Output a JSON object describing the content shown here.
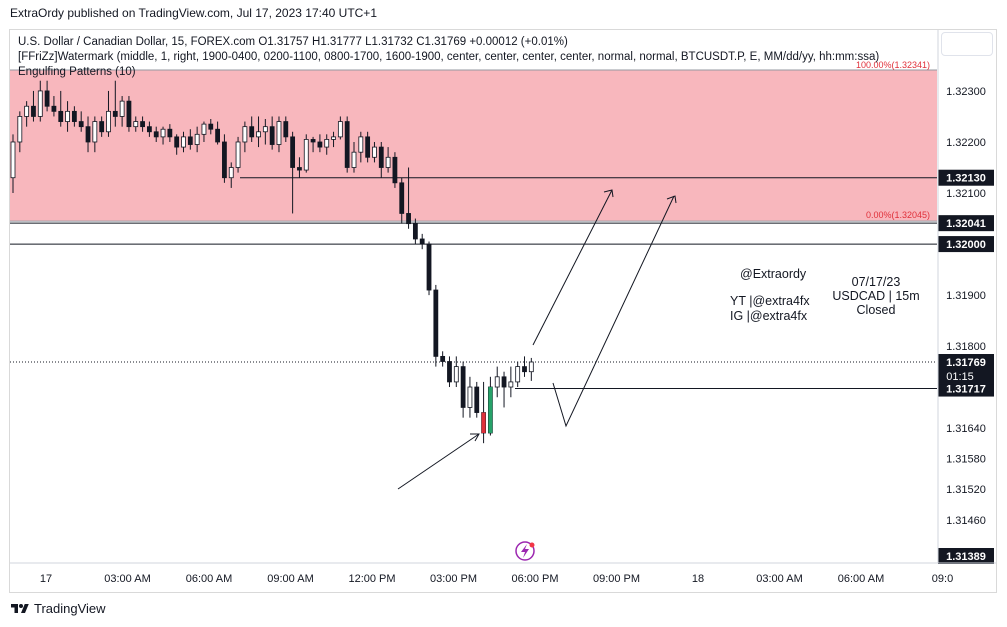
{
  "header": {
    "published": "ExtraOrdy published on TradingView.com, Jul 17, 2023 17:40 UTC+1"
  },
  "legend": {
    "symbol_line": "U.S. Dollar / Canadian Dollar, 15, FOREX.com  O1.31757  H1.31777  L1.31732  C1.31769  +0.00012 (+0.01%)",
    "indicator_line": "[FFriZz]Watermark (middle, 1, right, 1900-0400, 0200-1100, 0800-1700, 1600-1900, center, center, center, center, normal, normal, BTCUSDT.P, E, MM/dd/yy, hh:mm:ssa)",
    "pattern_line": "Engulfing Patterns (10)"
  },
  "footer": {
    "brand": "TradingView"
  },
  "colors": {
    "zone_fill": "#f8b7bd",
    "up_candle": "#26a269",
    "down_candle": "#131722",
    "zone_top_label": "#e0303a",
    "price_label_bg": "#131722",
    "price_label_text": "#ffffff"
  },
  "annotations": {
    "handle": "@Extraordy",
    "yt": "YT  |@extra4fx",
    "ig": "IG  |@extra4fx",
    "date": "07/17/23",
    "pair": "USDCAD  |  15m",
    "status": "Closed"
  },
  "chart_data": {
    "type": "candlestick",
    "symbol": "USDCAD",
    "interval": "15",
    "ylim": [
      1.31389,
      1.32341
    ],
    "y_ticks": [
      "1.32300",
      "1.32200",
      "1.32100",
      "1.31900",
      "1.31800",
      "1.31640",
      "1.31580",
      "1.31520",
      "1.31460"
    ],
    "x_ticks": [
      "17",
      "03:00 AM",
      "06:00 AM",
      "09:00 AM",
      "12:00 PM",
      "03:00 PM",
      "06:00 PM",
      "09:00 PM",
      "18",
      "03:00 AM",
      "06:00 AM",
      "09:0"
    ],
    "zone": {
      "top": 1.32341,
      "bottom": 1.32045,
      "top_label": "100.00%(1.32341)",
      "bottom_label": "0.00%(1.32045)"
    },
    "levels": [
      {
        "price": 1.3213,
        "label": "1.32130"
      },
      {
        "price": 1.32041,
        "label": "1.32041"
      },
      {
        "price": 1.32,
        "label": "1.32000"
      },
      {
        "price": 1.31717,
        "label": "1.31717"
      }
    ],
    "current_price": {
      "price": 1.31769,
      "label": "1.31769",
      "countdown": "01:15"
    },
    "bottom_label": {
      "price": 1.31389,
      "label": "1.31389"
    },
    "candles": [
      {
        "o": 1.3213,
        "h": 1.32215,
        "l": 1.321,
        "c": 1.322
      },
      {
        "o": 1.322,
        "h": 1.3226,
        "l": 1.3218,
        "c": 1.3225
      },
      {
        "o": 1.3225,
        "h": 1.3228,
        "l": 1.3223,
        "c": 1.3227
      },
      {
        "o": 1.3227,
        "h": 1.323,
        "l": 1.3224,
        "c": 1.3225
      },
      {
        "o": 1.3225,
        "h": 1.3232,
        "l": 1.3224,
        "c": 1.323
      },
      {
        "o": 1.323,
        "h": 1.3232,
        "l": 1.3226,
        "c": 1.3227
      },
      {
        "o": 1.3227,
        "h": 1.3229,
        "l": 1.3225,
        "c": 1.3226
      },
      {
        "o": 1.3226,
        "h": 1.323,
        "l": 1.3223,
        "c": 1.3224
      },
      {
        "o": 1.3224,
        "h": 1.3228,
        "l": 1.3222,
        "c": 1.3226
      },
      {
        "o": 1.3226,
        "h": 1.3227,
        "l": 1.3223,
        "c": 1.3224
      },
      {
        "o": 1.3224,
        "h": 1.3226,
        "l": 1.3222,
        "c": 1.3223
      },
      {
        "o": 1.3223,
        "h": 1.3225,
        "l": 1.3218,
        "c": 1.322
      },
      {
        "o": 1.322,
        "h": 1.3225,
        "l": 1.3218,
        "c": 1.3224
      },
      {
        "o": 1.3224,
        "h": 1.3225,
        "l": 1.3221,
        "c": 1.3222
      },
      {
        "o": 1.3222,
        "h": 1.323,
        "l": 1.3221,
        "c": 1.3226
      },
      {
        "o": 1.3226,
        "h": 1.3232,
        "l": 1.3223,
        "c": 1.3225
      },
      {
        "o": 1.3225,
        "h": 1.3229,
        "l": 1.3223,
        "c": 1.3228
      },
      {
        "o": 1.3228,
        "h": 1.3229,
        "l": 1.3222,
        "c": 1.3223
      },
      {
        "o": 1.3223,
        "h": 1.3225,
        "l": 1.3222,
        "c": 1.3224
      },
      {
        "o": 1.3224,
        "h": 1.3225,
        "l": 1.3222,
        "c": 1.3223
      },
      {
        "o": 1.3223,
        "h": 1.3224,
        "l": 1.3221,
        "c": 1.3222
      },
      {
        "o": 1.3222,
        "h": 1.3223,
        "l": 1.322,
        "c": 1.3221
      },
      {
        "o": 1.3221,
        "h": 1.3223,
        "l": 1.32195,
        "c": 1.32225
      },
      {
        "o": 1.32225,
        "h": 1.32235,
        "l": 1.322,
        "c": 1.3221
      },
      {
        "o": 1.3221,
        "h": 1.32215,
        "l": 1.32175,
        "c": 1.3219
      },
      {
        "o": 1.3219,
        "h": 1.3222,
        "l": 1.3218,
        "c": 1.3221
      },
      {
        "o": 1.3221,
        "h": 1.32225,
        "l": 1.32185,
        "c": 1.32195
      },
      {
        "o": 1.32195,
        "h": 1.3223,
        "l": 1.3218,
        "c": 1.32215
      },
      {
        "o": 1.32215,
        "h": 1.3224,
        "l": 1.322,
        "c": 1.32235
      },
      {
        "o": 1.32235,
        "h": 1.32245,
        "l": 1.32215,
        "c": 1.32225
      },
      {
        "o": 1.32225,
        "h": 1.3224,
        "l": 1.32195,
        "c": 1.322
      },
      {
        "o": 1.322,
        "h": 1.32215,
        "l": 1.3212,
        "c": 1.3213
      },
      {
        "o": 1.3213,
        "h": 1.3216,
        "l": 1.3211,
        "c": 1.3215
      },
      {
        "o": 1.3215,
        "h": 1.3221,
        "l": 1.3214,
        "c": 1.322
      },
      {
        "o": 1.322,
        "h": 1.3224,
        "l": 1.3218,
        "c": 1.3223
      },
      {
        "o": 1.3223,
        "h": 1.3225,
        "l": 1.322,
        "c": 1.3221
      },
      {
        "o": 1.3221,
        "h": 1.3225,
        "l": 1.3219,
        "c": 1.3222
      },
      {
        "o": 1.3222,
        "h": 1.32245,
        "l": 1.32195,
        "c": 1.3223
      },
      {
        "o": 1.3223,
        "h": 1.3225,
        "l": 1.32185,
        "c": 1.32195
      },
      {
        "o": 1.32195,
        "h": 1.3225,
        "l": 1.3218,
        "c": 1.3224
      },
      {
        "o": 1.3224,
        "h": 1.3225,
        "l": 1.322,
        "c": 1.3221
      },
      {
        "o": 1.3221,
        "h": 1.3222,
        "l": 1.3206,
        "c": 1.3215
      },
      {
        "o": 1.3215,
        "h": 1.3217,
        "l": 1.3213,
        "c": 1.32145
      },
      {
        "o": 1.32145,
        "h": 1.32215,
        "l": 1.3214,
        "c": 1.32205
      },
      {
        "o": 1.32205,
        "h": 1.3221,
        "l": 1.3218,
        "c": 1.322
      },
      {
        "o": 1.322,
        "h": 1.32215,
        "l": 1.3218,
        "c": 1.3219
      },
      {
        "o": 1.3219,
        "h": 1.32215,
        "l": 1.32175,
        "c": 1.32205
      },
      {
        "o": 1.32205,
        "h": 1.3222,
        "l": 1.3219,
        "c": 1.3221
      },
      {
        "o": 1.3221,
        "h": 1.3225,
        "l": 1.32205,
        "c": 1.3224
      },
      {
        "o": 1.3224,
        "h": 1.3225,
        "l": 1.3214,
        "c": 1.3215
      },
      {
        "o": 1.3215,
        "h": 1.322,
        "l": 1.3214,
        "c": 1.3218
      },
      {
        "o": 1.3218,
        "h": 1.3222,
        "l": 1.3216,
        "c": 1.3221
      },
      {
        "o": 1.3221,
        "h": 1.3222,
        "l": 1.3216,
        "c": 1.3217
      },
      {
        "o": 1.3217,
        "h": 1.322,
        "l": 1.3216,
        "c": 1.3219
      },
      {
        "o": 1.3219,
        "h": 1.322,
        "l": 1.3213,
        "c": 1.3215
      },
      {
        "o": 1.3215,
        "h": 1.3219,
        "l": 1.3214,
        "c": 1.3217
      },
      {
        "o": 1.3217,
        "h": 1.3218,
        "l": 1.3211,
        "c": 1.3212
      },
      {
        "o": 1.3212,
        "h": 1.3213,
        "l": 1.3204,
        "c": 1.3206
      },
      {
        "o": 1.3206,
        "h": 1.3215,
        "l": 1.3203,
        "c": 1.3204
      },
      {
        "o": 1.3204,
        "h": 1.3205,
        "l": 1.32,
        "c": 1.3201
      },
      {
        "o": 1.3201,
        "h": 1.3202,
        "l": 1.3199,
        "c": 1.32
      },
      {
        "o": 1.32,
        "h": 1.32005,
        "l": 1.319,
        "c": 1.3191
      },
      {
        "o": 1.3191,
        "h": 1.3192,
        "l": 1.3176,
        "c": 1.3178
      },
      {
        "o": 1.3178,
        "h": 1.3179,
        "l": 1.3176,
        "c": 1.3177
      },
      {
        "o": 1.3177,
        "h": 1.3178,
        "l": 1.3172,
        "c": 1.3173
      },
      {
        "o": 1.3173,
        "h": 1.3178,
        "l": 1.3172,
        "c": 1.3176
      },
      {
        "o": 1.3176,
        "h": 1.3177,
        "l": 1.3166,
        "c": 1.3168
      },
      {
        "o": 1.3168,
        "h": 1.3174,
        "l": 1.3166,
        "c": 1.3172
      },
      {
        "o": 1.3172,
        "h": 1.3173,
        "l": 1.3166,
        "c": 1.3167
      },
      {
        "o": 1.3167,
        "h": 1.3173,
        "l": 1.3161,
        "c": 1.3163
      },
      {
        "o": 1.3163,
        "h": 1.3174,
        "l": 1.31625,
        "c": 1.3172
      },
      {
        "o": 1.3172,
        "h": 1.3176,
        "l": 1.317,
        "c": 1.3174
      },
      {
        "o": 1.3174,
        "h": 1.3175,
        "l": 1.3168,
        "c": 1.3172
      },
      {
        "o": 1.3172,
        "h": 1.3176,
        "l": 1.317,
        "c": 1.3173
      },
      {
        "o": 1.3173,
        "h": 1.3177,
        "l": 1.3172,
        "c": 1.3176
      },
      {
        "o": 1.3176,
        "h": 1.3178,
        "l": 1.3174,
        "c": 1.3175
      },
      {
        "o": 1.3175,
        "h": 1.31777,
        "l": 1.31732,
        "c": 1.31769
      }
    ]
  }
}
